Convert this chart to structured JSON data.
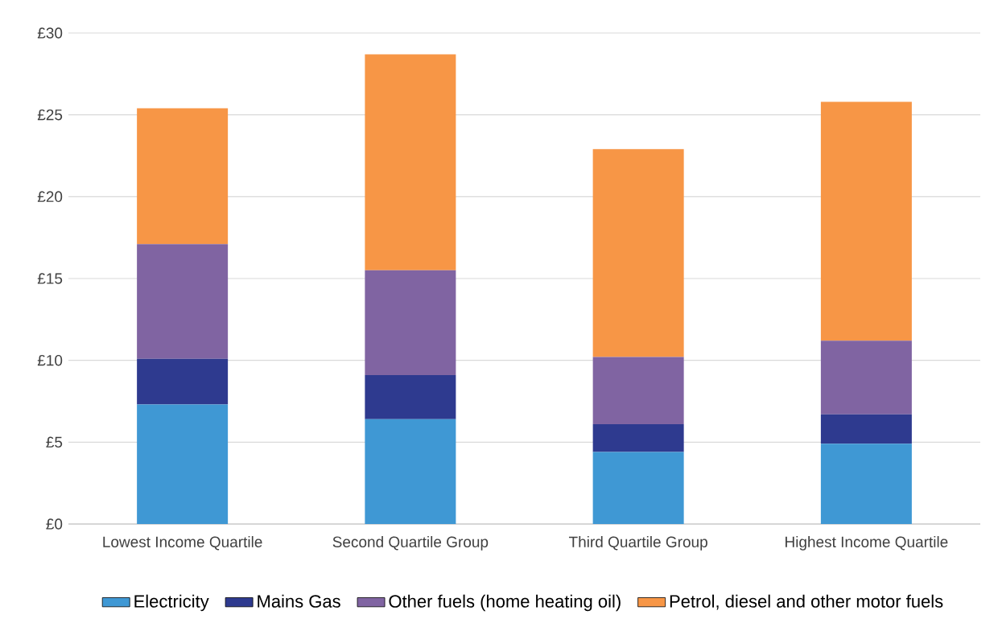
{
  "chart_data": {
    "type": "bar",
    "stacked": true,
    "categories": [
      "Lowest Income Quartile",
      "Second Quartile Group",
      "Third Quartile Group",
      "Highest Income Quartile"
    ],
    "series": [
      {
        "name": "Electricity",
        "color": "#3f98d4",
        "values": [
          7.3,
          6.4,
          4.4,
          4.9
        ]
      },
      {
        "name": "Mains Gas",
        "color": "#2e3a8f",
        "values": [
          2.8,
          2.7,
          1.7,
          1.8
        ]
      },
      {
        "name": "Other fuels (home heating oil)",
        "color": "#8064a2",
        "values": [
          7.0,
          6.4,
          4.1,
          4.5
        ]
      },
      {
        "name": "Petrol, diesel and other motor fuels",
        "color": "#f79646",
        "values": [
          8.3,
          13.2,
          12.7,
          14.6
        ]
      }
    ],
    "ylim": [
      0,
      30
    ],
    "yticks": [
      {
        "value": 0,
        "label": "£0"
      },
      {
        "value": 5,
        "label": "£5"
      },
      {
        "value": 10,
        "label": "£10"
      },
      {
        "value": 15,
        "label": "£15"
      },
      {
        "value": 20,
        "label": "£20"
      },
      {
        "value": 25,
        "label": "£25"
      },
      {
        "value": 30,
        "label": "£30"
      }
    ],
    "grid": "y",
    "legend": "bottom"
  }
}
